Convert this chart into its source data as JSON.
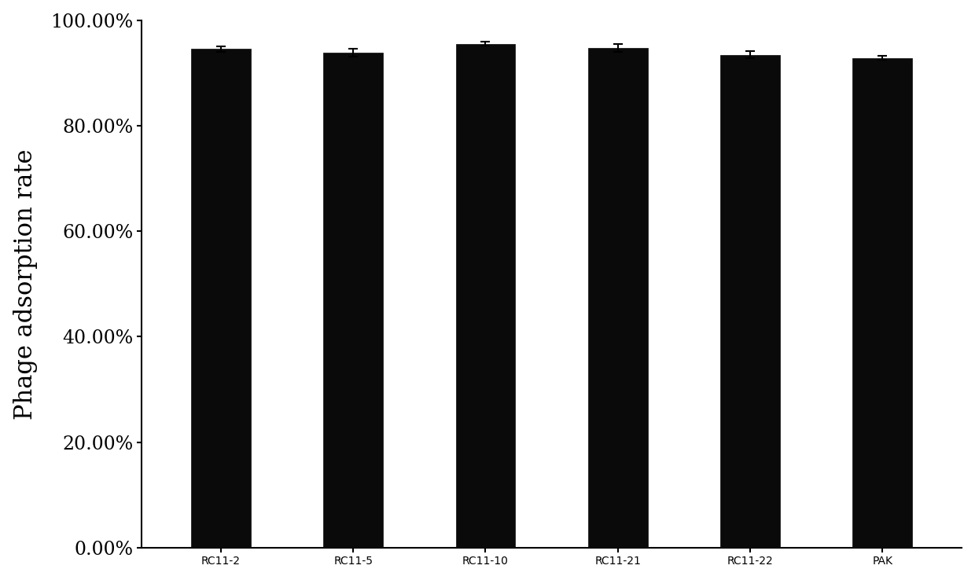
{
  "categories": [
    "RC11-2",
    "RC11-5",
    "RC11-10",
    "RC11-21",
    "RC11-22",
    "PAK"
  ],
  "values": [
    0.9455,
    0.9385,
    0.9555,
    0.9475,
    0.9345,
    0.9285
  ],
  "errors": [
    0.005,
    0.008,
    0.004,
    0.007,
    0.007,
    0.004
  ],
  "bar_color": "#0a0a0a",
  "bar_width": 0.45,
  "bar_edgecolor": "#0a0a0a",
  "ylabel": "Phage adsorption rate",
  "ylabel_fontsize": 22,
  "tick_fontsize": 17,
  "xlabel_fontsize": 20,
  "ylim": [
    0.0,
    1.0
  ],
  "yticks": [
    0.0,
    0.2,
    0.4,
    0.6,
    0.8,
    1.0
  ],
  "ytick_labels": [
    "0.00%",
    "20.00%",
    "40.00%",
    "60.00%",
    "80.00%",
    "100.00%"
  ],
  "background_color": "#ffffff",
  "error_capsize": 4,
  "error_linewidth": 1.5,
  "spine_linewidth": 1.5,
  "xlim_left": -0.6,
  "xlim_right": 5.6
}
